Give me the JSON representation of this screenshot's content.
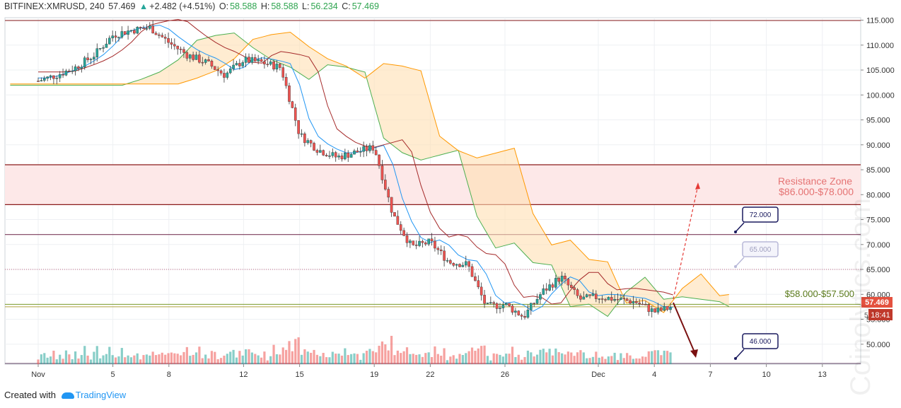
{
  "header": {
    "symbol": "BITFINEX:XMRUSD, 240",
    "last": "57.469",
    "arrow": "▲",
    "change": "+2.482 (+4.51%)",
    "o_label": "O:",
    "o": "58.588",
    "h_label": "H:",
    "h": "58.588",
    "l_label": "L:",
    "l": "56.234",
    "c_label": "C:",
    "c": "57.469"
  },
  "footer": {
    "created": "Created with",
    "brand": "TradingView"
  },
  "watermark": "Coinolytics.com",
  "colors": {
    "up": "#26a69a",
    "down": "#ef5350",
    "resistance_line": "#8b1c1c",
    "resistance_fill": "#fde8e8",
    "line72": "#7b3b5b",
    "line65": "#c06080",
    "support": "#7a9a2a",
    "cloud_bull": "#c8e6c9",
    "cloud_bear": "#ffe0b2",
    "tenkan": "#2196f3",
    "kijun": "#a52a2a",
    "spanA": "#4caf50",
    "spanB": "#ff9800",
    "label_border": "#1a1a5e",
    "price_badge": "#e4513f",
    "timer_badge": "#c0392b"
  },
  "chart_data": {
    "type": "candlestick",
    "y_ticks": [
      "115.000",
      "110.000",
      "105.000",
      "100.000",
      "95.000",
      "90.000",
      "85.000",
      "80.000",
      "75.000",
      "70.000",
      "65.000",
      "60.000",
      "55.000",
      "50.000"
    ],
    "x_ticks": [
      "Nov",
      "5",
      "8",
      "12",
      "15",
      "19",
      "22",
      "26",
      "Dec",
      "4",
      "7",
      "10",
      "13"
    ],
    "ylim": [
      46,
      115.5
    ],
    "horizontal_levels": [
      {
        "value": 86.0,
        "kind": "resistance-top"
      },
      {
        "value": 78.0,
        "kind": "resistance-bottom"
      },
      {
        "value": 72.0,
        "kind": "resistance",
        "label": "72.000"
      },
      {
        "value": 65.0,
        "kind": "resistance-dotted",
        "label": "65.000"
      },
      {
        "value": 58.0,
        "kind": "support"
      },
      {
        "value": 57.5,
        "kind": "support"
      },
      {
        "value": 46.0,
        "kind": "support",
        "label": "46.000"
      }
    ],
    "annotations": {
      "resistance_zone_title": "Resistance Zone",
      "resistance_zone_range": "$86.000-$78.000",
      "support_text": "$58.000-$57.500"
    },
    "last_price": "57.469",
    "timer": "18:41",
    "hidden_tick": "5",
    "close_path": [
      [
        "Nov 1",
        102.8
      ],
      [
        "Nov 2",
        104.0
      ],
      [
        "Nov 3",
        105.5
      ],
      [
        "Nov 4",
        108.0
      ],
      [
        "Nov 5",
        112.0
      ],
      [
        "Nov 6",
        113.0
      ],
      [
        "Nov 7",
        113.5
      ],
      [
        "Nov 8",
        110.5
      ],
      [
        "Nov 9",
        108.0
      ],
      [
        "Nov 10",
        106.5
      ],
      [
        "Nov 11",
        104.0
      ],
      [
        "Nov 12",
        107.0
      ],
      [
        "Nov 13",
        106.5
      ],
      [
        "Nov 14",
        105.5
      ],
      [
        "Nov 15",
        92.0
      ],
      [
        "Nov 16",
        89.0
      ],
      [
        "Nov 17",
        87.5
      ],
      [
        "Nov 18",
        88.5
      ],
      [
        "Nov 19",
        89.5
      ],
      [
        "Nov 20",
        76.0
      ],
      [
        "Nov 21",
        69.5
      ],
      [
        "Nov 22",
        70.5
      ],
      [
        "Nov 23",
        66.5
      ],
      [
        "Nov 24",
        66.0
      ],
      [
        "Nov 25",
        57.5
      ],
      [
        "Nov 26",
        58.0
      ],
      [
        "Nov 27",
        55.5
      ],
      [
        "Nov 28",
        60.5
      ],
      [
        "Nov 29",
        63.5
      ],
      [
        "Nov 30",
        59.0
      ],
      [
        "Dec 1",
        59.5
      ],
      [
        "Dec 2",
        59.0
      ],
      [
        "Dec 3",
        58.5
      ],
      [
        "Dec 4",
        56.5
      ],
      [
        "Dec 5",
        57.469
      ]
    ],
    "projection": {
      "bull_target": 81.5,
      "bear_target": 46.0
    }
  }
}
